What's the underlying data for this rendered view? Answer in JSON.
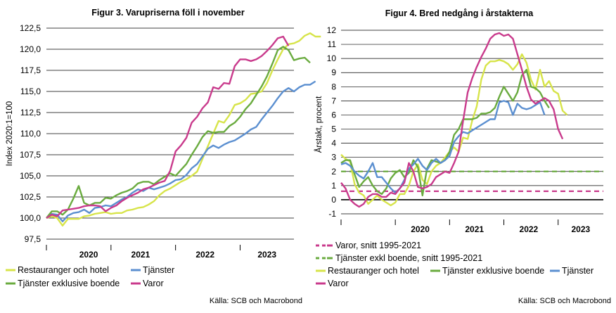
{
  "colors": {
    "restauranger": "#d7e44a",
    "tjanster": "#5b8fd0",
    "tjanster_exkl": "#6aab3f",
    "varor": "#c93a8c",
    "varor_avg": "#c93a8c",
    "tjanster_exkl_avg": "#6aab3f"
  },
  "chart_data": [
    {
      "type": "line",
      "title": "Figur 3. Varupriserna föll i november",
      "ylabel": "Index 2020:1=100",
      "xlabel": "",
      "ylim": [
        97.5,
        122.5
      ],
      "yticks": [
        "97,5",
        "100,0",
        "102,5",
        "105,0",
        "107,5",
        "110,0",
        "112,5",
        "115,0",
        "117,5",
        "120,0",
        "122,5"
      ],
      "ytick_values": [
        97.5,
        100,
        102.5,
        105,
        107.5,
        110,
        112.5,
        115,
        117.5,
        120,
        122.5
      ],
      "year_labels": [
        "2020",
        "2021",
        "2022",
        "2023"
      ],
      "x_start": "2020-01",
      "x_end": "2023-11",
      "grid": true,
      "legend": "bottom",
      "source": "Källa: SCB och Macrobond",
      "series": [
        {
          "name": "Restauranger och hotel",
          "color_key": "restauranger",
          "values": [
            100.0,
            100.2,
            100.0,
            99.1,
            99.9,
            99.9,
            99.9,
            100.2,
            100.3,
            100.5,
            100.6,
            100.7,
            100.5,
            100.6,
            100.6,
            100.9,
            101.0,
            101.2,
            101.3,
            101.6,
            102.0,
            102.7,
            103.2,
            103.5,
            103.9,
            104.3,
            104.6,
            105.0,
            105.5,
            107.0,
            108.5,
            110.0,
            111.5,
            111.3,
            112.2,
            113.4,
            113.6,
            114.0,
            114.7,
            114.8,
            115.0,
            116.0,
            117.5,
            118.8,
            120.0,
            120.6,
            120.7,
            121.0,
            121.6,
            121.9,
            121.5,
            121.5
          ]
        },
        {
          "name": "Tjänster",
          "color_key": "tjanster",
          "values": [
            100.0,
            100.5,
            100.4,
            99.6,
            100.3,
            100.6,
            100.7,
            101.0,
            100.6,
            101.2,
            101.3,
            101.5,
            101.4,
            101.8,
            102.2,
            102.5,
            103.0,
            103.4,
            103.2,
            103.6,
            103.4,
            103.6,
            103.8,
            104.1,
            104.5,
            104.6,
            105.1,
            105.9,
            106.4,
            107.3,
            108.2,
            108.6,
            108.3,
            108.7,
            109.0,
            109.2,
            109.6,
            110.0,
            110.5,
            110.8,
            111.7,
            112.5,
            113.3,
            114.2,
            115.0,
            115.4,
            115.0,
            115.5,
            115.8,
            115.8,
            116.2
          ]
        },
        {
          "name": "Tjänster exklusive boende",
          "color_key": "tjanster_exkl",
          "values": [
            100.0,
            100.8,
            100.8,
            100.4,
            101.0,
            102.3,
            103.8,
            101.8,
            101.5,
            101.8,
            101.8,
            102.4,
            102.3,
            102.7,
            103.0,
            103.2,
            103.5,
            104.1,
            104.3,
            104.3,
            104.0,
            104.5,
            104.9,
            105.3,
            105.0,
            105.7,
            106.4,
            107.5,
            108.5,
            109.6,
            110.3,
            110.1,
            110.2,
            110.2,
            110.9,
            111.3,
            112.0,
            112.9,
            113.6,
            114.6,
            115.6,
            116.8,
            118.3,
            119.9,
            120.3,
            119.9,
            118.7,
            118.9,
            119.0,
            118.4
          ]
        },
        {
          "name": "Varor",
          "color_key": "varor",
          "values": [
            100.0,
            100.4,
            100.2,
            100.9,
            101.0,
            101.1,
            101.2,
            101.4,
            101.5,
            101.5,
            101.4,
            100.8,
            101.2,
            101.5,
            102.0,
            102.4,
            102.7,
            103.0,
            103.4,
            103.6,
            103.9,
            104.2,
            104.4,
            105.6,
            107.9,
            108.6,
            109.5,
            111.3,
            112.0,
            113.0,
            113.7,
            115.5,
            115.3,
            116.0,
            115.9,
            118.0,
            118.8,
            118.8,
            118.6,
            118.8,
            119.2,
            119.8,
            120.5,
            121.3,
            121.5,
            120.4
          ]
        }
      ]
    },
    {
      "type": "line",
      "title": "Figur 4. Bred nedgång i årstakterna",
      "ylabel": "Årstakt, procent",
      "xlabel": "",
      "ylim": [
        -1,
        12
      ],
      "yticks": [
        "-1",
        "0",
        "1",
        "2",
        "3",
        "4",
        "5",
        "6",
        "7",
        "8",
        "9",
        "10",
        "11",
        "12"
      ],
      "ytick_values": [
        -1,
        0,
        1,
        2,
        3,
        4,
        5,
        6,
        7,
        8,
        9,
        10,
        11,
        12
      ],
      "year_labels": [
        "2020",
        "2021",
        "2022",
        "2023"
      ],
      "x_start": "2019-01",
      "x_end": "2023-11",
      "grid": true,
      "legend": "bottom",
      "source": "Källa: SCB och Macrobond",
      "averages": [
        {
          "name": "Varor, snitt 1995-2021",
          "color_key": "varor_avg",
          "value": 0.6
        },
        {
          "name": "Tjänster exkl boende, snitt 1995-2021",
          "color_key": "tjanster_exkl_avg",
          "value": 2.0
        }
      ],
      "series": [
        {
          "name": "Restauranger och hotel",
          "color_key": "restauranger",
          "values": [
            3.2,
            2.9,
            2.7,
            1.1,
            0.5,
            0.3,
            -0.3,
            0.0,
            0.3,
            0.0,
            -0.2,
            -0.4,
            -0.2,
            0.4,
            0.4,
            1.0,
            2.0,
            2.5,
            1.4,
            1.1,
            2.0,
            2.4,
            2.6,
            3.0,
            3.4,
            3.7,
            3.4,
            4.4,
            4.3,
            5.6,
            6.6,
            8.5,
            9.5,
            9.8,
            9.8,
            9.9,
            9.8,
            9.6,
            9.2,
            9.6,
            10.3,
            9.7,
            8.5,
            7.8,
            9.2,
            8.0,
            8.4,
            7.7,
            7.5,
            6.3,
            6.0
          ]
        },
        {
          "name": "Tjänster exklusive boende",
          "color_key": "tjanster_exkl",
          "values": [
            2.6,
            2.8,
            2.8,
            1.8,
            0.9,
            1.3,
            1.6,
            1.0,
            0.6,
            0.4,
            0.8,
            1.5,
            1.9,
            2.1,
            1.6,
            1.9,
            2.8,
            2.3,
            0.3,
            2.2,
            2.8,
            2.7,
            2.6,
            2.8,
            3.4,
            4.6,
            5.0,
            5.7,
            5.7,
            5.7,
            5.8,
            6.1,
            6.1,
            6.2,
            6.5,
            7.3,
            8.0,
            7.5,
            7.0,
            7.6,
            8.8,
            9.2,
            8.0,
            7.9,
            7.6,
            7.0,
            6.5
          ]
        },
        {
          "name": "Tjänster",
          "color_key": "tjanster",
          "values": [
            2.5,
            2.6,
            2.4,
            2.0,
            1.7,
            1.5,
            2.0,
            2.6,
            1.6,
            1.6,
            1.2,
            0.8,
            0.5,
            0.8,
            1.4,
            2.2,
            2.5,
            2.9,
            2.4,
            2.1,
            2.6,
            2.9,
            2.6,
            2.8,
            3.1,
            4.1,
            4.5,
            4.8,
            4.7,
            4.9,
            5.1,
            5.3,
            5.5,
            5.7,
            5.7,
            6.9,
            7.0,
            6.9,
            6.0,
            6.8,
            6.5,
            6.4,
            6.5,
            6.7,
            6.9,
            6.0
          ]
        },
        {
          "name": "Varor",
          "color_key": "varor",
          "values": [
            1.2,
            0.8,
            0.0,
            -0.3,
            -0.5,
            -0.3,
            0.2,
            0.4,
            0.4,
            0.2,
            0.2,
            0.5,
            0.4,
            0.8,
            1.2,
            2.6,
            2.0,
            0.9,
            0.8,
            0.9,
            1.1,
            1.6,
            1.8,
            2.0,
            1.9,
            2.6,
            3.4,
            5.6,
            7.6,
            8.6,
            9.4,
            10.1,
            10.7,
            11.4,
            11.7,
            11.8,
            11.6,
            11.7,
            11.4,
            10.3,
            9.2,
            8.0,
            7.1,
            6.8,
            7.0,
            7.2,
            7.0,
            6.4,
            5.0,
            4.3
          ]
        }
      ]
    }
  ],
  "left_legend": [
    {
      "label": "Restauranger och hotel",
      "color_key": "restauranger"
    },
    {
      "label": "Tjänster",
      "color_key": "tjanster"
    },
    {
      "label": "Tjänster exklusive boende",
      "color_key": "tjanster_exkl"
    },
    {
      "label": "Varor",
      "color_key": "varor"
    }
  ],
  "right_legend": [
    {
      "label": "Varor, snitt 1995-2021",
      "color_key": "varor_avg",
      "dashed": true
    },
    {
      "label": "Tjänster exkl boende, snitt 1995-2021",
      "color_key": "tjanster_exkl_avg",
      "dashed": true
    },
    {
      "label": "Restauranger och hotel",
      "color_key": "restauranger"
    },
    {
      "label": "Tjänster exklusive boende",
      "color_key": "tjanster_exkl"
    },
    {
      "label": "Tjänster",
      "color_key": "tjanster"
    },
    {
      "label": "Varor",
      "color_key": "varor"
    }
  ]
}
